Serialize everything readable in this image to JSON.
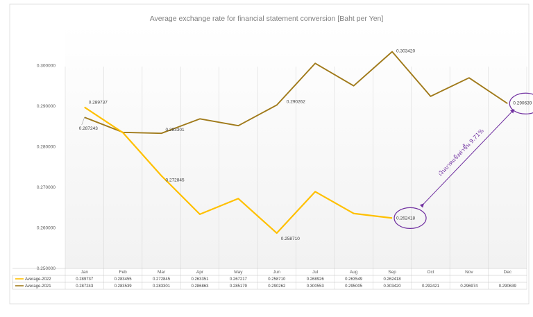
{
  "chart_data": {
    "type": "line",
    "title": "Average exchange rate for financial statement conversion [Baht per Yen]",
    "categories": [
      "Jan",
      "Feb",
      "Mar",
      "Apr",
      "May",
      "Jun",
      "Jul",
      "Aug",
      "Sep",
      "Oct",
      "Nov",
      "Dec"
    ],
    "ylim": [
      0.25,
      0.31
    ],
    "yticks": [
      "0.250000",
      "0.260000",
      "0.270000",
      "0.280000",
      "0.290000",
      "0.300000"
    ],
    "ytick_values": [
      0.25,
      0.26,
      0.27,
      0.28,
      0.29,
      0.3
    ],
    "grid": "vertical",
    "legend": "data-table",
    "series": [
      {
        "name": "Average-2022",
        "color": "#ffc000",
        "values": [
          0.289737,
          0.283455,
          0.272845,
          0.263351,
          0.267217,
          0.25871,
          0.268926,
          0.263549,
          0.262418,
          null,
          null,
          null
        ],
        "cells": [
          "0.289737",
          "0.283455",
          "0.272845",
          "0.263351",
          "0.267217",
          "0.258710",
          "0.268926",
          "0.263549",
          "0.262418",
          "",
          "",
          ""
        ]
      },
      {
        "name": "Average-2021",
        "color": "#a07a1a",
        "values": [
          0.287243,
          0.283539,
          0.283301,
          0.286863,
          0.285179,
          0.290262,
          0.300553,
          0.295005,
          0.30342,
          0.292421,
          0.296974,
          0.290639
        ],
        "cells": [
          "0.287243",
          "0.283539",
          "0.283301",
          "0.286863",
          "0.285179",
          "0.290262",
          "0.300553",
          "0.295005",
          "0.303420",
          "0.292421",
          "0.296974",
          "0.290639"
        ]
      }
    ],
    "data_labels": [
      {
        "series": 0,
        "index": 0,
        "text": "0.289737"
      },
      {
        "series": 0,
        "index": 2,
        "text": "0.272845"
      },
      {
        "series": 0,
        "index": 5,
        "text": "0.258710"
      },
      {
        "series": 0,
        "index": 8,
        "text": "0.262418"
      },
      {
        "series": 1,
        "index": 0,
        "text": "0.287243"
      },
      {
        "series": 1,
        "index": 2,
        "text": "0.283301"
      },
      {
        "series": 1,
        "index": 5,
        "text": "0.290262"
      },
      {
        "series": 1,
        "index": 8,
        "text": "0.303420"
      },
      {
        "series": 1,
        "index": 11,
        "text": "0.290639"
      }
    ],
    "annotation": {
      "text": "เงินบาทแข็งค่าขึ้น 9.71%",
      "color": "#7030a0",
      "circled": [
        {
          "series": 0,
          "index": 8
        },
        {
          "series": 1,
          "index": 11
        }
      ]
    }
  }
}
